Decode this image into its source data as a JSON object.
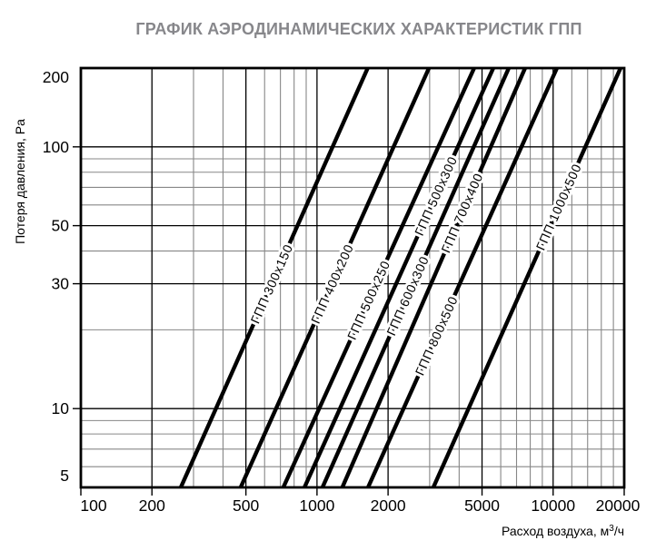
{
  "chart_data": {
    "type": "line",
    "title": "ГРАФИК АЭРОДИНАМИЧЕСКИХ ХАРАКТЕРИСТИК ГПП",
    "xlabel": "Расход воздуха, м³/ч",
    "ylabel": "Потеря давления, Pa",
    "x_scale": "log",
    "y_scale": "log",
    "xlim": [
      100,
      20000
    ],
    "ylim": [
      5,
      200
    ],
    "x_ticks_labeled": [
      "100",
      "200",
      "500",
      "1000",
      "2000",
      "5000",
      "10000",
      "20000"
    ],
    "x_tick_values": [
      100,
      200,
      500,
      1000,
      2000,
      5000,
      10000,
      20000
    ],
    "x_gridlines_minor": [
      300,
      400,
      600,
      700,
      800,
      900,
      3000,
      4000,
      6000,
      7000,
      8000,
      9000,
      12000,
      14000,
      16000,
      18000
    ],
    "y_ticks_labeled": [
      "5",
      "10",
      "30",
      "50",
      "100",
      "200"
    ],
    "y_tick_values": [
      5,
      10,
      30,
      50,
      100,
      200
    ],
    "y_gridlines_minor": [
      6,
      7,
      8,
      9,
      20,
      40,
      60,
      70,
      80,
      90
    ],
    "grid_on": true,
    "legend": "labels-on-lines",
    "series": [
      {
        "name": "ГПП 300x150",
        "points": [
          [
            265,
            5
          ],
          [
            1640,
            200
          ]
        ],
        "label_at_pa": 30
      },
      {
        "name": "ГПП 400x200",
        "points": [
          [
            475,
            5
          ],
          [
            2980,
            200
          ]
        ],
        "label_at_pa": 30
      },
      {
        "name": "ГПП 500x250",
        "points": [
          [
            720,
            5
          ],
          [
            4630,
            200
          ]
        ],
        "label_at_pa": 26
      },
      {
        "name": "ГПП 500x300",
        "points": [
          [
            885,
            5
          ],
          [
            5580,
            200
          ]
        ],
        "label_at_pa": 65
      },
      {
        "name": "ГПП 600x300",
        "points": [
          [
            1055,
            5
          ],
          [
            6490,
            200
          ]
        ],
        "label_at_pa": 27
      },
      {
        "name": "ГПП 700x400",
        "points": [
          [
            1280,
            5
          ],
          [
            7610,
            200
          ]
        ],
        "label_at_pa": 56
      },
      {
        "name": "ГПП 800x500",
        "points": [
          [
            1645,
            5
          ],
          [
            10380,
            200
          ]
        ],
        "label_at_pa": 19
      },
      {
        "name": "ГПП 1000x500",
        "points": [
          [
            3110,
            5
          ],
          [
            19300,
            200
          ]
        ],
        "label_at_pa": 59
      }
    ],
    "colors": {
      "series_line": "#000000",
      "grid_minor": "#878787",
      "grid_major": "#000000",
      "border": "#000000",
      "tick_text": "#000000",
      "title_text": "#87878b"
    }
  }
}
